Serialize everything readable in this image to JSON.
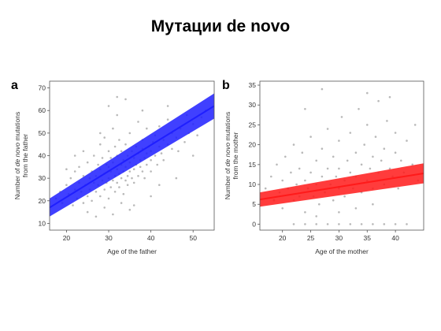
{
  "slide": {
    "title": "Мутации de novo"
  },
  "chart_data": [
    {
      "type": "scatter",
      "panel": "a",
      "xlabel": "Age of the father",
      "ylabel_parts": [
        "Number of ",
        "de novo",
        " mutations"
      ],
      "ylabel_line2": "from the father",
      "xlim": [
        16,
        55
      ],
      "ylim": [
        7,
        73
      ],
      "xticks": [
        20,
        30,
        40,
        50
      ],
      "yticks": [
        10,
        20,
        30,
        40,
        50,
        60,
        70
      ],
      "fit": {
        "x": [
          16,
          55
        ],
        "y": [
          17,
          62
        ],
        "color": "#1f1fff",
        "band": 4
      },
      "point_color": "#b9b9b9",
      "points": [
        [
          17.5,
          21
        ],
        [
          18.5,
          24
        ],
        [
          19,
          19
        ],
        [
          20,
          27
        ],
        [
          20.5,
          23
        ],
        [
          21,
          30
        ],
        [
          21.5,
          18
        ],
        [
          22,
          25
        ],
        [
          22,
          33
        ],
        [
          22.5,
          21
        ],
        [
          23,
          28
        ],
        [
          23,
          35
        ],
        [
          23.5,
          24
        ],
        [
          24,
          19
        ],
        [
          24,
          31
        ],
        [
          24.5,
          27
        ],
        [
          25,
          22
        ],
        [
          25,
          37
        ],
        [
          25.5,
          30
        ],
        [
          25.5,
          25
        ],
        [
          26,
          33
        ],
        [
          26,
          20
        ],
        [
          26.5,
          28
        ],
        [
          26.5,
          40
        ],
        [
          27,
          24
        ],
        [
          27,
          31
        ],
        [
          27.5,
          36
        ],
        [
          27.5,
          27
        ],
        [
          28,
          22
        ],
        [
          28,
          34
        ],
        [
          28,
          45
        ],
        [
          28.5,
          29
        ],
        [
          28.5,
          39
        ],
        [
          29,
          25
        ],
        [
          29,
          32
        ],
        [
          29,
          48
        ],
        [
          29.5,
          36
        ],
        [
          29.5,
          28
        ],
        [
          30,
          21
        ],
        [
          30,
          30
        ],
        [
          30,
          35
        ],
        [
          30,
          42
        ],
        [
          30.5,
          26
        ],
        [
          30.5,
          33
        ],
        [
          30.5,
          39
        ],
        [
          31,
          29
        ],
        [
          31,
          37
        ],
        [
          31,
          52
        ],
        [
          31.5,
          24
        ],
        [
          31.5,
          31
        ],
        [
          31.5,
          44
        ],
        [
          32,
          28
        ],
        [
          32,
          34
        ],
        [
          32,
          40
        ],
        [
          32,
          58
        ],
        [
          32.5,
          32
        ],
        [
          32.5,
          26
        ],
        [
          32.5,
          47
        ],
        [
          33,
          30
        ],
        [
          33,
          36
        ],
        [
          33,
          42
        ],
        [
          33.5,
          23
        ],
        [
          33.5,
          33
        ],
        [
          33.5,
          38
        ],
        [
          34,
          29
        ],
        [
          34,
          35
        ],
        [
          34,
          45
        ],
        [
          34.5,
          31
        ],
        [
          34.5,
          40
        ],
        [
          34.5,
          27
        ],
        [
          35,
          33
        ],
        [
          35,
          37
        ],
        [
          35,
          50
        ],
        [
          35.5,
          30
        ],
        [
          35.5,
          42
        ],
        [
          36,
          34
        ],
        [
          36,
          39
        ],
        [
          36,
          28
        ],
        [
          36.5,
          36
        ],
        [
          36.5,
          44
        ],
        [
          37,
          31
        ],
        [
          37,
          41
        ],
        [
          37,
          55
        ],
        [
          37.5,
          38
        ],
        [
          37.5,
          35
        ],
        [
          38,
          33
        ],
        [
          38,
          43
        ],
        [
          38,
          47
        ],
        [
          38.5,
          39
        ],
        [
          38.5,
          30
        ],
        [
          39,
          41
        ],
        [
          39,
          36
        ],
        [
          39,
          52
        ],
        [
          39.5,
          44
        ],
        [
          40,
          38
        ],
        [
          40,
          42
        ],
        [
          40,
          33
        ],
        [
          40.5,
          46
        ],
        [
          41,
          40
        ],
        [
          41,
          49
        ],
        [
          41.5,
          36
        ],
        [
          42,
          44
        ],
        [
          42,
          53
        ],
        [
          42.5,
          41
        ],
        [
          43,
          47
        ],
        [
          43,
          38
        ],
        [
          44,
          45
        ],
        [
          44,
          56
        ],
        [
          45,
          43
        ],
        [
          45,
          50
        ],
        [
          46,
          48
        ],
        [
          46.5,
          42
        ],
        [
          47,
          52
        ],
        [
          48,
          46
        ],
        [
          48.5,
          58
        ],
        [
          49,
          50
        ],
        [
          50,
          54
        ],
        [
          51,
          49
        ],
        [
          52,
          57
        ],
        [
          53,
          60
        ],
        [
          25,
          15
        ],
        [
          27,
          13
        ],
        [
          29,
          17
        ],
        [
          31,
          14
        ],
        [
          33,
          19
        ],
        [
          35,
          16
        ],
        [
          30,
          62
        ],
        [
          34,
          65
        ],
        [
          38,
          60
        ],
        [
          36,
          18
        ],
        [
          40,
          22
        ],
        [
          28,
          50
        ],
        [
          32,
          66
        ],
        [
          44,
          62
        ],
        [
          46,
          30
        ],
        [
          24,
          42
        ],
        [
          22,
          40
        ],
        [
          42,
          27
        ],
        [
          50,
          40
        ],
        [
          20,
          34
        ]
      ]
    },
    {
      "type": "scatter",
      "panel": "b",
      "xlabel": "Age of the mother",
      "ylabel_parts": [
        "Number of ",
        "de novo",
        " mutations"
      ],
      "ylabel_line2": "from the mother",
      "xlim": [
        16,
        45
      ],
      "ylim": [
        -1.5,
        36
      ],
      "xticks": [
        20,
        25,
        30,
        35,
        40
      ],
      "yticks": [
        0,
        5,
        10,
        15,
        20,
        25,
        30,
        35
      ],
      "fit": {
        "x": [
          16,
          45
        ],
        "y": [
          6.2,
          12.8
        ],
        "color": "#ff1a1a",
        "band": 1.8
      },
      "point_color": "#b9b9b9",
      "points": [
        [
          17,
          9
        ],
        [
          18,
          12
        ],
        [
          18.5,
          6
        ],
        [
          19,
          15
        ],
        [
          19.5,
          8
        ],
        [
          20,
          11
        ],
        [
          20,
          4
        ],
        [
          20.5,
          17
        ],
        [
          21,
          9
        ],
        [
          21.5,
          13
        ],
        [
          22,
          6
        ],
        [
          22,
          20
        ],
        [
          22.5,
          10
        ],
        [
          23,
          14
        ],
        [
          23,
          7
        ],
        [
          23.5,
          18
        ],
        [
          24,
          11
        ],
        [
          24,
          3
        ],
        [
          24.5,
          9
        ],
        [
          25,
          13
        ],
        [
          25,
          22
        ],
        [
          25.5,
          7
        ],
        [
          26,
          10
        ],
        [
          26,
          16
        ],
        [
          26.5,
          5
        ],
        [
          27,
          12
        ],
        [
          27,
          19
        ],
        [
          27.5,
          8
        ],
        [
          28,
          14
        ],
        [
          28,
          24
        ],
        [
          28.5,
          10
        ],
        [
          29,
          6
        ],
        [
          29,
          17
        ],
        [
          29.5,
          12
        ],
        [
          30,
          9
        ],
        [
          30,
          21
        ],
        [
          30,
          14
        ],
        [
          30.5,
          27
        ],
        [
          31,
          11
        ],
        [
          31,
          7
        ],
        [
          31.5,
          16
        ],
        [
          32,
          13
        ],
        [
          32,
          23
        ],
        [
          32.5,
          9
        ],
        [
          33,
          18
        ],
        [
          33,
          12
        ],
        [
          33.5,
          29
        ],
        [
          34,
          15
        ],
        [
          34,
          8
        ],
        [
          34.5,
          20
        ],
        [
          35,
          11
        ],
        [
          35,
          25
        ],
        [
          35.5,
          14
        ],
        [
          36,
          17
        ],
        [
          36,
          9
        ],
        [
          36.5,
          22
        ],
        [
          37,
          13
        ],
        [
          37,
          31
        ],
        [
          37.5,
          16
        ],
        [
          38,
          10
        ],
        [
          38,
          19
        ],
        [
          38.5,
          26
        ],
        [
          39,
          14
        ],
        [
          39.5,
          12
        ],
        [
          40,
          18
        ],
        [
          40,
          23
        ],
        [
          40.5,
          9
        ],
        [
          41,
          16
        ],
        [
          41.5,
          13
        ],
        [
          42,
          21
        ],
        [
          43,
          15
        ],
        [
          43.5,
          25
        ],
        [
          44,
          11
        ],
        [
          27,
          34
        ],
        [
          35,
          33
        ],
        [
          39,
          32
        ],
        [
          24,
          29
        ],
        [
          30,
          3
        ],
        [
          33,
          4
        ],
        [
          36,
          5
        ],
        [
          26,
          2
        ],
        [
          22,
          0
        ],
        [
          24,
          0
        ],
        [
          26,
          0
        ],
        [
          28,
          0
        ],
        [
          30,
          0
        ],
        [
          32,
          0
        ],
        [
          34,
          0
        ],
        [
          36,
          0
        ],
        [
          38,
          0
        ],
        [
          40,
          0
        ],
        [
          42,
          0
        ]
      ]
    }
  ]
}
